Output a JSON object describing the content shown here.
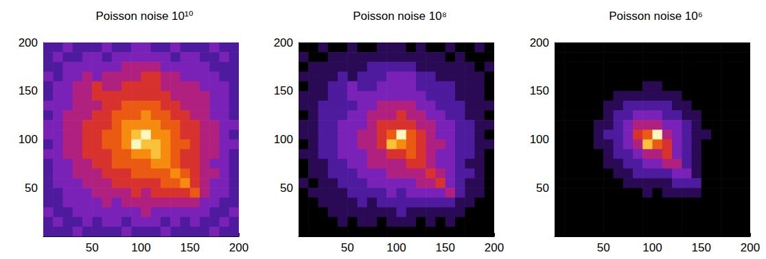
{
  "chart_data": [
    {
      "type": "heatmap",
      "title": "Poisson noise 10¹⁰",
      "x": [
        5,
        15,
        25,
        35,
        45,
        55,
        65,
        75,
        85,
        95,
        105,
        115,
        125,
        135,
        145,
        155,
        165,
        175,
        185,
        195
      ],
      "y": [
        195,
        185,
        175,
        165,
        155,
        145,
        135,
        125,
        115,
        105,
        95,
        85,
        75,
        65,
        55,
        45,
        35,
        25,
        15,
        5
      ],
      "cells": [
        [
          2,
          2,
          3,
          2,
          2,
          2,
          3,
          2,
          2,
          3,
          3,
          2,
          2,
          3,
          2,
          2,
          2,
          3,
          2,
          2
        ],
        [
          2,
          3,
          2,
          2,
          3,
          3,
          2,
          3,
          3,
          3,
          3,
          3,
          3,
          2,
          3,
          3,
          2,
          2,
          3,
          2
        ],
        [
          2,
          2,
          3,
          3,
          3,
          3,
          3,
          3,
          4,
          4,
          4,
          4,
          3,
          3,
          3,
          3,
          3,
          2,
          2,
          2
        ],
        [
          3,
          2,
          3,
          3,
          4,
          3,
          4,
          4,
          4,
          4,
          5,
          5,
          4,
          4,
          3,
          3,
          3,
          3,
          2,
          2
        ],
        [
          2,
          3,
          3,
          4,
          4,
          5,
          4,
          4,
          5,
          5,
          5,
          5,
          4,
          4,
          4,
          4,
          3,
          3,
          3,
          2
        ],
        [
          2,
          3,
          3,
          4,
          4,
          5,
          5,
          5,
          5,
          5,
          5,
          5,
          5,
          4,
          4,
          4,
          4,
          3,
          3,
          2
        ],
        [
          3,
          3,
          3,
          4,
          4,
          4,
          5,
          5,
          6,
          6,
          6,
          6,
          5,
          5,
          4,
          4,
          4,
          3,
          3,
          2
        ],
        [
          2,
          3,
          4,
          4,
          4,
          5,
          5,
          6,
          6,
          6,
          7,
          6,
          6,
          5,
          5,
          4,
          4,
          3,
          3,
          2
        ],
        [
          3,
          3,
          4,
          4,
          5,
          5,
          5,
          6,
          7,
          7,
          7,
          7,
          6,
          6,
          5,
          5,
          4,
          4,
          3,
          3
        ],
        [
          3,
          3,
          4,
          4,
          5,
          5,
          6,
          6,
          7,
          8,
          9,
          7,
          7,
          6,
          5,
          5,
          4,
          4,
          3,
          2
        ],
        [
          2,
          3,
          4,
          4,
          5,
          5,
          6,
          6,
          7,
          9,
          8,
          8,
          7,
          6,
          6,
          5,
          4,
          4,
          3,
          3
        ],
        [
          3,
          3,
          4,
          4,
          5,
          5,
          5,
          6,
          6,
          7,
          7,
          8,
          7,
          6,
          5,
          5,
          4,
          4,
          3,
          2
        ],
        [
          2,
          3,
          3,
          4,
          4,
          5,
          5,
          6,
          6,
          6,
          6,
          7,
          7,
          6,
          5,
          5,
          4,
          3,
          3,
          2
        ],
        [
          2,
          3,
          3,
          4,
          4,
          4,
          5,
          5,
          5,
          6,
          6,
          6,
          6,
          7,
          6,
          5,
          4,
          4,
          3,
          2
        ],
        [
          2,
          3,
          3,
          3,
          4,
          4,
          4,
          5,
          5,
          5,
          5,
          5,
          6,
          6,
          7,
          5,
          4,
          3,
          3,
          2
        ],
        [
          2,
          2,
          3,
          3,
          3,
          4,
          4,
          4,
          4,
          5,
          4,
          5,
          5,
          5,
          5,
          6,
          4,
          3,
          3,
          2
        ],
        [
          2,
          2,
          3,
          3,
          3,
          3,
          4,
          3,
          4,
          4,
          4,
          4,
          4,
          4,
          4,
          4,
          3,
          3,
          2,
          2
        ],
        [
          3,
          2,
          2,
          3,
          3,
          3,
          3,
          3,
          3,
          3,
          4,
          3,
          3,
          3,
          3,
          3,
          3,
          2,
          2,
          3
        ],
        [
          2,
          3,
          2,
          2,
          3,
          2,
          3,
          3,
          2,
          3,
          3,
          3,
          2,
          3,
          2,
          3,
          2,
          2,
          3,
          2
        ],
        [
          2,
          2,
          2,
          3,
          2,
          2,
          2,
          2,
          3,
          2,
          2,
          2,
          3,
          2,
          2,
          2,
          2,
          3,
          2,
          2
        ]
      ],
      "color_range": [
        0,
        9
      ],
      "xlim": [
        0,
        200
      ],
      "ylim": [
        0,
        200
      ],
      "xticks": [
        50,
        100,
        150,
        200
      ],
      "yticks": [
        50,
        100,
        150,
        200
      ]
    },
    {
      "type": "heatmap",
      "title": "Poisson noise 10⁸",
      "x": [
        5,
        15,
        25,
        35,
        45,
        55,
        65,
        75,
        85,
        95,
        105,
        115,
        125,
        135,
        145,
        155,
        165,
        175,
        185,
        195
      ],
      "y": [
        195,
        185,
        175,
        165,
        155,
        145,
        135,
        125,
        115,
        105,
        95,
        85,
        75,
        65,
        55,
        45,
        35,
        25,
        15,
        5
      ],
      "cells": [
        [
          0,
          0,
          1,
          0,
          0,
          1,
          0,
          0,
          1,
          1,
          1,
          0,
          1,
          0,
          0,
          1,
          0,
          0,
          1,
          0
        ],
        [
          1,
          0,
          0,
          1,
          1,
          1,
          1,
          1,
          1,
          1,
          1,
          1,
          1,
          1,
          1,
          0,
          1,
          0,
          0,
          0
        ],
        [
          0,
          1,
          1,
          1,
          1,
          1,
          1,
          2,
          2,
          2,
          2,
          2,
          1,
          1,
          1,
          1,
          1,
          1,
          0,
          1
        ],
        [
          1,
          1,
          1,
          1,
          2,
          1,
          2,
          2,
          2,
          3,
          3,
          3,
          2,
          2,
          1,
          1,
          1,
          1,
          1,
          0
        ],
        [
          0,
          1,
          1,
          2,
          2,
          3,
          2,
          2,
          3,
          3,
          3,
          3,
          2,
          2,
          2,
          2,
          1,
          1,
          1,
          0
        ],
        [
          1,
          1,
          1,
          2,
          2,
          3,
          3,
          3,
          3,
          3,
          3,
          3,
          3,
          2,
          2,
          2,
          1,
          1,
          1,
          0
        ],
        [
          1,
          1,
          2,
          2,
          2,
          2,
          3,
          3,
          4,
          4,
          4,
          4,
          3,
          3,
          2,
          2,
          2,
          1,
          1,
          1
        ],
        [
          0,
          1,
          2,
          2,
          2,
          3,
          3,
          4,
          4,
          4,
          5,
          4,
          4,
          3,
          3,
          2,
          2,
          1,
          1,
          0
        ],
        [
          1,
          1,
          2,
          2,
          3,
          3,
          3,
          4,
          5,
          5,
          5,
          5,
          4,
          4,
          3,
          3,
          2,
          2,
          1,
          1
        ],
        [
          1,
          1,
          2,
          2,
          3,
          3,
          4,
          4,
          5,
          6,
          9,
          6,
          5,
          4,
          3,
          3,
          2,
          2,
          1,
          0
        ],
        [
          0,
          1,
          2,
          2,
          3,
          3,
          4,
          4,
          5,
          8,
          7,
          6,
          5,
          4,
          4,
          3,
          2,
          2,
          1,
          1
        ],
        [
          1,
          1,
          2,
          2,
          3,
          3,
          3,
          4,
          4,
          5,
          5,
          6,
          5,
          4,
          3,
          3,
          2,
          2,
          1,
          0
        ],
        [
          0,
          1,
          1,
          2,
          2,
          3,
          3,
          4,
          4,
          4,
          4,
          5,
          5,
          4,
          3,
          3,
          2,
          1,
          1,
          0
        ],
        [
          0,
          1,
          1,
          2,
          2,
          2,
          3,
          3,
          3,
          4,
          4,
          4,
          4,
          5,
          4,
          3,
          2,
          2,
          1,
          0
        ],
        [
          1,
          0,
          1,
          1,
          2,
          2,
          2,
          3,
          3,
          3,
          3,
          3,
          4,
          4,
          5,
          3,
          2,
          1,
          1,
          0
        ],
        [
          0,
          1,
          1,
          1,
          1,
          2,
          2,
          2,
          2,
          3,
          2,
          3,
          3,
          3,
          3,
          4,
          2,
          1,
          1,
          0
        ],
        [
          0,
          0,
          1,
          1,
          1,
          1,
          2,
          1,
          2,
          2,
          2,
          2,
          2,
          2,
          2,
          2,
          1,
          1,
          0,
          0
        ],
        [
          0,
          0,
          0,
          1,
          1,
          1,
          1,
          1,
          1,
          1,
          2,
          1,
          1,
          1,
          1,
          1,
          1,
          0,
          0,
          0
        ],
        [
          0,
          0,
          0,
          0,
          1,
          0,
          1,
          1,
          0,
          1,
          1,
          1,
          0,
          1,
          0,
          1,
          0,
          0,
          0,
          0
        ],
        [
          0,
          0,
          0,
          0,
          0,
          0,
          0,
          0,
          0,
          0,
          0,
          0,
          0,
          0,
          0,
          0,
          0,
          0,
          0,
          0
        ]
      ],
      "color_range": [
        0,
        9
      ],
      "xlim": [
        0,
        200
      ],
      "ylim": [
        0,
        200
      ],
      "xticks": [
        50,
        100,
        150,
        200
      ],
      "yticks": [
        50,
        100,
        150,
        200
      ]
    },
    {
      "type": "heatmap",
      "title": "Poisson noise 10⁶",
      "x": [
        5,
        15,
        25,
        35,
        45,
        55,
        65,
        75,
        85,
        95,
        105,
        115,
        125,
        135,
        145,
        155,
        165,
        175,
        185,
        195
      ],
      "y": [
        195,
        185,
        175,
        165,
        155,
        145,
        135,
        125,
        115,
        105,
        95,
        85,
        75,
        65,
        55,
        45,
        35,
        25,
        15,
        5
      ],
      "cells": [
        [
          0,
          0,
          0,
          0,
          0,
          0,
          0,
          0,
          0,
          0,
          0,
          0,
          0,
          0,
          0,
          0,
          0,
          0,
          0,
          0
        ],
        [
          0,
          0,
          0,
          0,
          0,
          0,
          0,
          0,
          0,
          0,
          0,
          0,
          0,
          0,
          0,
          0,
          0,
          0,
          0,
          0
        ],
        [
          0,
          0,
          0,
          0,
          0,
          0,
          0,
          0,
          0,
          0,
          0,
          0,
          0,
          0,
          0,
          0,
          0,
          0,
          0,
          0
        ],
        [
          0,
          0,
          0,
          0,
          0,
          0,
          0,
          0,
          0,
          0,
          0,
          0,
          0,
          0,
          0,
          0,
          0,
          0,
          0,
          0
        ],
        [
          0,
          0,
          0,
          0,
          0,
          0,
          0,
          0,
          0,
          1,
          1,
          0,
          0,
          0,
          0,
          0,
          0,
          0,
          0,
          0
        ],
        [
          0,
          0,
          0,
          0,
          0,
          0,
          1,
          1,
          1,
          1,
          1,
          1,
          1,
          0,
          0,
          0,
          0,
          0,
          0,
          0
        ],
        [
          0,
          0,
          0,
          0,
          0,
          1,
          1,
          2,
          2,
          2,
          2,
          2,
          1,
          1,
          0,
          0,
          0,
          0,
          0,
          0
        ],
        [
          0,
          0,
          0,
          0,
          0,
          1,
          2,
          2,
          3,
          3,
          3,
          2,
          2,
          1,
          1,
          0,
          0,
          0,
          0,
          0
        ],
        [
          0,
          0,
          0,
          0,
          1,
          1,
          2,
          3,
          4,
          4,
          4,
          3,
          3,
          2,
          1,
          0,
          0,
          0,
          0,
          0
        ],
        [
          0,
          0,
          0,
          0,
          1,
          2,
          2,
          3,
          5,
          6,
          9,
          4,
          3,
          2,
          1,
          1,
          0,
          0,
          0,
          0
        ],
        [
          0,
          0,
          0,
          0,
          1,
          1,
          2,
          3,
          4,
          8,
          6,
          5,
          3,
          2,
          1,
          0,
          0,
          0,
          0,
          0
        ],
        [
          0,
          0,
          0,
          0,
          0,
          1,
          2,
          2,
          3,
          4,
          4,
          5,
          3,
          2,
          1,
          0,
          0,
          0,
          0,
          0
        ],
        [
          0,
          0,
          0,
          0,
          0,
          1,
          1,
          2,
          2,
          3,
          3,
          4,
          4,
          2,
          1,
          0,
          0,
          0,
          0,
          0
        ],
        [
          0,
          0,
          0,
          0,
          0,
          0,
          1,
          1,
          2,
          2,
          2,
          2,
          3,
          3,
          1,
          0,
          0,
          0,
          0,
          0
        ],
        [
          0,
          0,
          0,
          0,
          0,
          0,
          0,
          1,
          1,
          1,
          1,
          1,
          2,
          2,
          2,
          0,
          0,
          0,
          0,
          0
        ],
        [
          0,
          0,
          0,
          0,
          0,
          0,
          0,
          0,
          0,
          1,
          0,
          1,
          1,
          1,
          1,
          0,
          0,
          0,
          0,
          0
        ],
        [
          0,
          0,
          0,
          0,
          0,
          0,
          0,
          0,
          0,
          0,
          0,
          0,
          0,
          0,
          0,
          0,
          0,
          0,
          0,
          0
        ],
        [
          0,
          0,
          0,
          0,
          0,
          0,
          0,
          0,
          0,
          0,
          0,
          0,
          0,
          0,
          0,
          0,
          0,
          0,
          0,
          0
        ],
        [
          0,
          0,
          0,
          0,
          0,
          0,
          0,
          0,
          0,
          0,
          0,
          0,
          0,
          0,
          0,
          0,
          0,
          0,
          0,
          0
        ],
        [
          0,
          0,
          0,
          0,
          0,
          0,
          0,
          0,
          0,
          0,
          0,
          0,
          0,
          0,
          0,
          0,
          0,
          0,
          0,
          0
        ]
      ],
      "color_range": [
        0,
        9
      ],
      "xlim": [
        0,
        200
      ],
      "ylim": [
        0,
        200
      ],
      "xticks": [
        50,
        100,
        150,
        200
      ],
      "yticks": [
        50,
        100,
        150,
        200
      ]
    }
  ]
}
